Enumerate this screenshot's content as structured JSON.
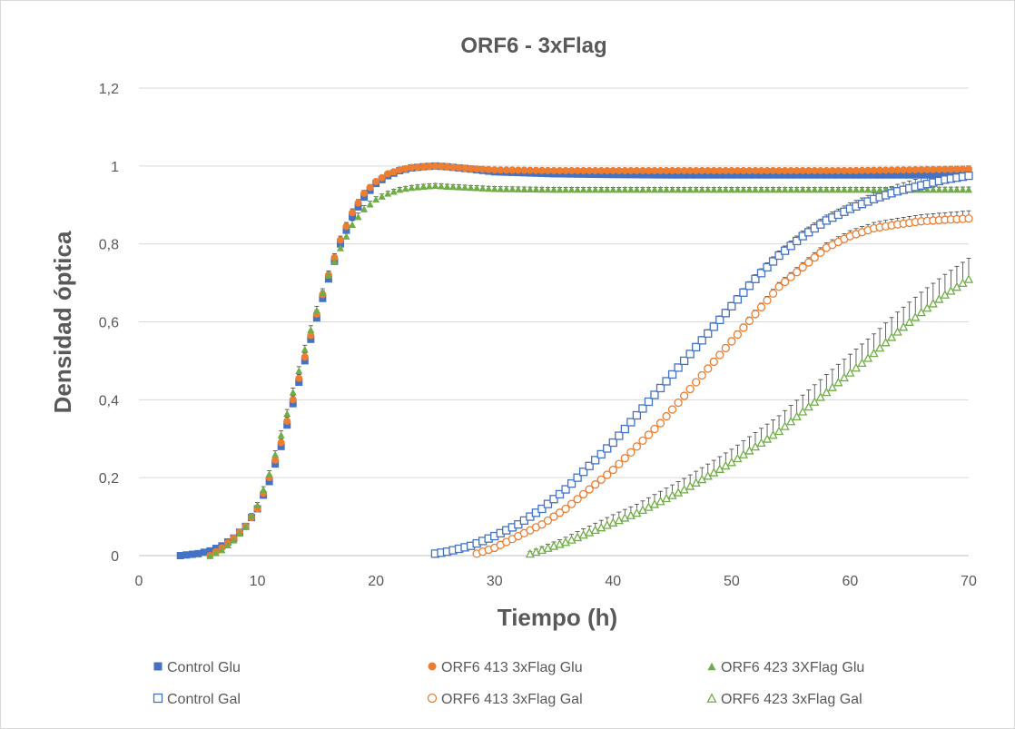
{
  "chart_data": {
    "type": "scatter",
    "title": "ORF6 - 3xFlag",
    "xlabel": "Tiempo (h)",
    "ylabel": "Densidad óptica",
    "xlim": [
      0,
      70
    ],
    "ylim": [
      0,
      1.2
    ],
    "x_ticks": [
      "0",
      "10",
      "20",
      "30",
      "40",
      "50",
      "60",
      "70"
    ],
    "y_ticks": [
      "0",
      "0,2",
      "0,4",
      "0,6",
      "0,8",
      "1",
      "1,2"
    ],
    "grid": "horizontal",
    "legend_position": "bottom",
    "series": [
      {
        "name": "Control Glu",
        "marker": "square",
        "filled": true,
        "color": "#4472C4",
        "x": [
          3.5,
          5,
          6,
          7,
          8,
          9,
          10,
          11,
          12,
          13,
          14,
          15,
          16,
          17,
          18,
          19,
          20,
          21,
          22,
          23,
          24,
          25,
          26,
          28,
          30,
          35,
          40,
          45,
          50,
          55,
          60,
          65,
          70
        ],
        "y": [
          0,
          0.005,
          0.012,
          0.025,
          0.045,
          0.075,
          0.12,
          0.19,
          0.28,
          0.39,
          0.5,
          0.61,
          0.71,
          0.8,
          0.87,
          0.92,
          0.955,
          0.975,
          0.988,
          0.995,
          0.998,
          1.0,
          0.998,
          0.992,
          0.985,
          0.98,
          0.978,
          0.977,
          0.977,
          0.977,
          0.977,
          0.977,
          0.977
        ],
        "err": [
          0,
          0.002,
          0.003,
          0.004,
          0.005,
          0.006,
          0.007,
          0.008,
          0.01,
          0.01,
          0.01,
          0.01,
          0.01,
          0.01,
          0.01,
          0.01,
          0.008,
          0.006,
          0.005,
          0.005,
          0.005,
          0.005,
          0.005,
          0.005,
          0.005,
          0.005,
          0.005,
          0.005,
          0.005,
          0.005,
          0.006,
          0.008,
          0.01
        ]
      },
      {
        "name": "ORF6 413 3xFlag Glu",
        "marker": "circle",
        "filled": true,
        "color": "#ED7D31",
        "x": [
          6,
          7,
          8,
          9,
          10,
          11,
          12,
          13,
          14,
          15,
          16,
          17,
          18,
          19,
          20,
          21,
          22,
          23,
          24,
          25,
          26,
          28,
          30,
          35,
          40,
          45,
          50,
          55,
          60,
          65,
          70
        ],
        "y": [
          0,
          0.02,
          0.045,
          0.075,
          0.12,
          0.2,
          0.29,
          0.4,
          0.51,
          0.62,
          0.72,
          0.81,
          0.88,
          0.93,
          0.96,
          0.98,
          0.99,
          0.996,
          0.998,
          1.0,
          0.998,
          0.993,
          0.99,
          0.988,
          0.988,
          0.988,
          0.988,
          0.988,
          0.988,
          0.99,
          0.992
        ],
        "err": [
          0,
          0.003,
          0.004,
          0.005,
          0.006,
          0.008,
          0.01,
          0.01,
          0.01,
          0.01,
          0.01,
          0.01,
          0.01,
          0.008,
          0.006,
          0.005,
          0.005,
          0.005,
          0.005,
          0.005,
          0.005,
          0.005,
          0.005,
          0.005,
          0.005,
          0.005,
          0.005,
          0.005,
          0.005,
          0.006,
          0.008
        ]
      },
      {
        "name": "ORF6 423 3XFlag Glu",
        "marker": "triangle",
        "filled": true,
        "color": "#70AD47",
        "x": [
          6,
          7,
          8,
          9,
          10,
          11,
          12,
          13,
          14,
          15,
          16,
          17,
          18,
          19,
          20,
          21,
          22,
          23,
          24,
          25,
          26,
          28,
          30,
          35,
          40,
          45,
          50,
          55,
          60,
          65,
          70
        ],
        "y": [
          0,
          0.015,
          0.04,
          0.075,
          0.13,
          0.21,
          0.31,
          0.42,
          0.53,
          0.63,
          0.72,
          0.79,
          0.85,
          0.89,
          0.915,
          0.93,
          0.94,
          0.945,
          0.948,
          0.95,
          0.948,
          0.945,
          0.942,
          0.94,
          0.94,
          0.94,
          0.94,
          0.94,
          0.94,
          0.94,
          0.94
        ],
        "err": [
          0,
          0.003,
          0.004,
          0.005,
          0.006,
          0.008,
          0.01,
          0.01,
          0.01,
          0.01,
          0.01,
          0.01,
          0.01,
          0.008,
          0.006,
          0.005,
          0.005,
          0.005,
          0.005,
          0.005,
          0.005,
          0.005,
          0.005,
          0.005,
          0.005,
          0.005,
          0.005,
          0.005,
          0.005,
          0.005,
          0.006
        ]
      },
      {
        "name": "Control Gal",
        "marker": "square",
        "filled": false,
        "color": "#4472C4",
        "x": [
          25,
          26,
          28,
          30,
          32,
          34,
          36,
          38,
          40,
          42,
          44,
          46,
          48,
          50,
          52,
          54,
          56,
          58,
          60,
          62,
          64,
          66,
          68,
          70
        ],
        "y": [
          0.005,
          0.01,
          0.025,
          0.05,
          0.08,
          0.12,
          0.17,
          0.23,
          0.29,
          0.36,
          0.43,
          0.5,
          0.57,
          0.64,
          0.71,
          0.77,
          0.82,
          0.86,
          0.89,
          0.915,
          0.935,
          0.95,
          0.965,
          0.975
        ],
        "err": [
          0.002,
          0.003,
          0.004,
          0.005,
          0.006,
          0.006,
          0.007,
          0.007,
          0.008,
          0.008,
          0.009,
          0.009,
          0.01,
          0.01,
          0.011,
          0.012,
          0.013,
          0.014,
          0.015,
          0.016,
          0.018,
          0.02,
          0.022,
          0.025
        ]
      },
      {
        "name": "ORF6 413 3xFlag Gal",
        "marker": "circle",
        "filled": false,
        "color": "#ED7D31",
        "x": [
          28.5,
          30,
          32,
          34,
          36,
          38,
          40,
          42,
          44,
          46,
          48,
          50,
          52,
          54,
          56,
          58,
          60,
          62,
          64,
          66,
          68,
          70
        ],
        "y": [
          0.005,
          0.02,
          0.05,
          0.08,
          0.12,
          0.17,
          0.22,
          0.28,
          0.34,
          0.41,
          0.48,
          0.55,
          0.62,
          0.69,
          0.74,
          0.79,
          0.82,
          0.84,
          0.85,
          0.858,
          0.862,
          0.865
        ],
        "err": [
          0.002,
          0.003,
          0.004,
          0.005,
          0.006,
          0.006,
          0.007,
          0.007,
          0.008,
          0.008,
          0.009,
          0.009,
          0.01,
          0.011,
          0.012,
          0.013,
          0.014,
          0.015,
          0.016,
          0.017,
          0.018,
          0.02
        ]
      },
      {
        "name": "ORF6 423 3xFlag Gal",
        "marker": "triangle",
        "filled": false,
        "color": "#70AD47",
        "x": [
          33,
          34,
          36,
          38,
          40,
          42,
          44,
          46,
          48,
          50,
          52,
          54,
          56,
          58,
          60,
          62,
          64,
          66,
          68,
          70
        ],
        "y": [
          0.005,
          0.015,
          0.035,
          0.06,
          0.085,
          0.11,
          0.14,
          0.17,
          0.205,
          0.24,
          0.28,
          0.32,
          0.37,
          0.42,
          0.47,
          0.52,
          0.575,
          0.625,
          0.67,
          0.71
        ],
        "err": [
          0.005,
          0.008,
          0.012,
          0.016,
          0.02,
          0.022,
          0.025,
          0.028,
          0.03,
          0.033,
          0.036,
          0.039,
          0.042,
          0.045,
          0.047,
          0.049,
          0.05,
          0.051,
          0.052,
          0.053
        ]
      }
    ]
  }
}
